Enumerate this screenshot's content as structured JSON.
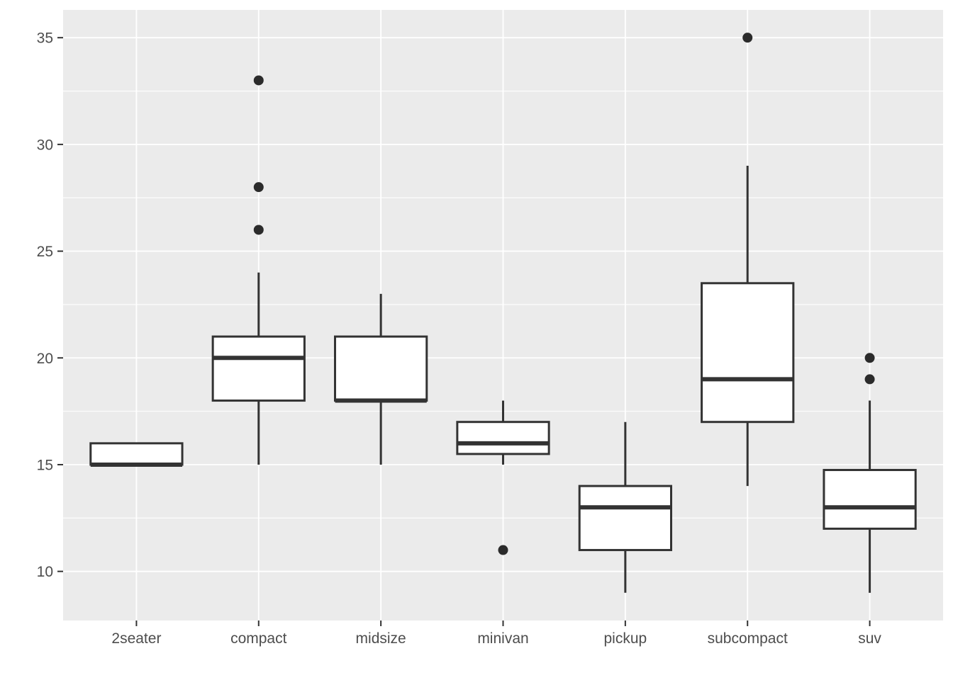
{
  "chart_data": {
    "type": "boxplot",
    "title": "",
    "xlabel": "",
    "ylabel": "",
    "categories": [
      "2seater",
      "compact",
      "midsize",
      "minivan",
      "pickup",
      "subcompact",
      "suv"
    ],
    "boxes": [
      {
        "category": "2seater",
        "lower_whisker": 15,
        "q1": 15,
        "median": 15,
        "q3": 16,
        "upper_whisker": 16,
        "outliers": []
      },
      {
        "category": "compact",
        "lower_whisker": 15,
        "q1": 18,
        "median": 20,
        "q3": 21,
        "upper_whisker": 24,
        "outliers": [
          26,
          28,
          33
        ]
      },
      {
        "category": "midsize",
        "lower_whisker": 15,
        "q1": 18,
        "median": 18,
        "q3": 21,
        "upper_whisker": 23,
        "outliers": []
      },
      {
        "category": "minivan",
        "lower_whisker": 15,
        "q1": 15.5,
        "median": 16,
        "q3": 17,
        "upper_whisker": 18,
        "outliers": [
          11
        ]
      },
      {
        "category": "pickup",
        "lower_whisker": 9,
        "q1": 11,
        "median": 13,
        "q3": 14,
        "upper_whisker": 17,
        "outliers": []
      },
      {
        "category": "subcompact",
        "lower_whisker": 14,
        "q1": 17,
        "median": 19,
        "q3": 23.5,
        "upper_whisker": 29,
        "outliers": [
          35
        ]
      },
      {
        "category": "suv",
        "lower_whisker": 9,
        "q1": 12,
        "median": 13,
        "q3": 14.75,
        "upper_whisker": 18,
        "outliers": [
          19,
          20
        ]
      }
    ],
    "y_tick_labels": [
      "10",
      "15",
      "20",
      "25",
      "30",
      "35"
    ],
    "y_ticks": [
      10,
      15,
      20,
      25,
      30,
      35
    ],
    "y_minor_gridlines": [
      12.5,
      17.5,
      22.5,
      27.5,
      32.5
    ],
    "ylim": [
      7.7,
      36.3
    ],
    "grid": "horizontal major+minor white lines; vertical white major line at each category center; grey panel",
    "legend_position": "none",
    "colors": {
      "plot_background": "#FFFFFF",
      "panel_background": "#EBEBEB",
      "gridline": "#FFFFFF",
      "box_stroke": "#333333",
      "box_fill": "#FFFFFF",
      "median_stroke": "#333333",
      "whisker_stroke": "#333333",
      "outlier_fill": "#2B2B2B",
      "axis_text": "#4D4D4D",
      "tick_mark": "#333333"
    }
  }
}
